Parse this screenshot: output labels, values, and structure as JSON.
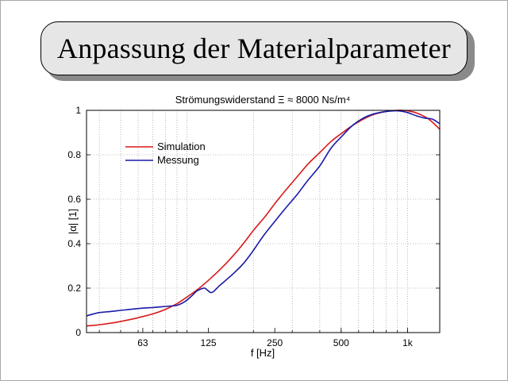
{
  "slide": {
    "title": "Anpassung der Materialparameter"
  },
  "chart_data": {
    "type": "line",
    "title": "Strömungswiderstand Ξ ≈ 8000 Ns/m⁴",
    "xlabel": "f [Hz]",
    "ylabel": "|α| [1]",
    "xscale": "log",
    "xlim": [
      35,
      1400
    ],
    "ylim": [
      0,
      1
    ],
    "grid": true,
    "legend_position": "upper-left",
    "x_ticks": [
      {
        "value": 63,
        "label": "63"
      },
      {
        "value": 125,
        "label": "125"
      },
      {
        "value": 250,
        "label": "250"
      },
      {
        "value": 500,
        "label": "500"
      },
      {
        "value": 1000,
        "label": "1k"
      }
    ],
    "y_ticks": [
      {
        "value": 0,
        "label": "0"
      },
      {
        "value": 0.2,
        "label": "0.2"
      },
      {
        "value": 0.4,
        "label": "0.4"
      },
      {
        "value": 0.6,
        "label": "0.6"
      },
      {
        "value": 0.8,
        "label": "0.8"
      },
      {
        "value": 1,
        "label": "1"
      }
    ],
    "series": [
      {
        "name": "Simulation",
        "color": "#d91a1a",
        "points": [
          [
            35,
            0.03
          ],
          [
            40,
            0.035
          ],
          [
            45,
            0.042
          ],
          [
            50,
            0.05
          ],
          [
            56,
            0.06
          ],
          [
            63,
            0.072
          ],
          [
            71,
            0.086
          ],
          [
            80,
            0.105
          ],
          [
            90,
            0.13
          ],
          [
            100,
            0.16
          ],
          [
            112,
            0.195
          ],
          [
            125,
            0.235
          ],
          [
            140,
            0.28
          ],
          [
            160,
            0.34
          ],
          [
            180,
            0.4
          ],
          [
            200,
            0.46
          ],
          [
            225,
            0.52
          ],
          [
            250,
            0.58
          ],
          [
            280,
            0.64
          ],
          [
            315,
            0.7
          ],
          [
            355,
            0.76
          ],
          [
            400,
            0.81
          ],
          [
            450,
            0.86
          ],
          [
            500,
            0.895
          ],
          [
            560,
            0.93
          ],
          [
            630,
            0.96
          ],
          [
            710,
            0.983
          ],
          [
            800,
            0.995
          ],
          [
            900,
            1.0
          ],
          [
            1000,
            0.998
          ],
          [
            1120,
            0.985
          ],
          [
            1250,
            0.96
          ],
          [
            1400,
            0.915
          ]
        ]
      },
      {
        "name": "Messung",
        "color": "#1a1aa8",
        "points": [
          [
            35,
            0.075
          ],
          [
            38,
            0.085
          ],
          [
            40,
            0.09
          ],
          [
            45,
            0.095
          ],
          [
            50,
            0.1
          ],
          [
            56,
            0.105
          ],
          [
            63,
            0.11
          ],
          [
            70,
            0.113
          ],
          [
            80,
            0.118
          ],
          [
            90,
            0.123
          ],
          [
            98,
            0.14
          ],
          [
            105,
            0.165
          ],
          [
            110,
            0.185
          ],
          [
            115,
            0.195
          ],
          [
            120,
            0.2
          ],
          [
            124,
            0.19
          ],
          [
            128,
            0.18
          ],
          [
            132,
            0.185
          ],
          [
            140,
            0.21
          ],
          [
            160,
            0.26
          ],
          [
            180,
            0.31
          ],
          [
            200,
            0.37
          ],
          [
            220,
            0.43
          ],
          [
            250,
            0.5
          ],
          [
            280,
            0.56
          ],
          [
            315,
            0.62
          ],
          [
            350,
            0.68
          ],
          [
            400,
            0.75
          ],
          [
            450,
            0.83
          ],
          [
            500,
            0.88
          ],
          [
            560,
            0.93
          ],
          [
            630,
            0.965
          ],
          [
            710,
            0.985
          ],
          [
            800,
            0.995
          ],
          [
            900,
            0.998
          ],
          [
            1000,
            0.99
          ],
          [
            1100,
            0.975
          ],
          [
            1200,
            0.965
          ],
          [
            1300,
            0.96
          ],
          [
            1400,
            0.94
          ]
        ]
      }
    ]
  }
}
